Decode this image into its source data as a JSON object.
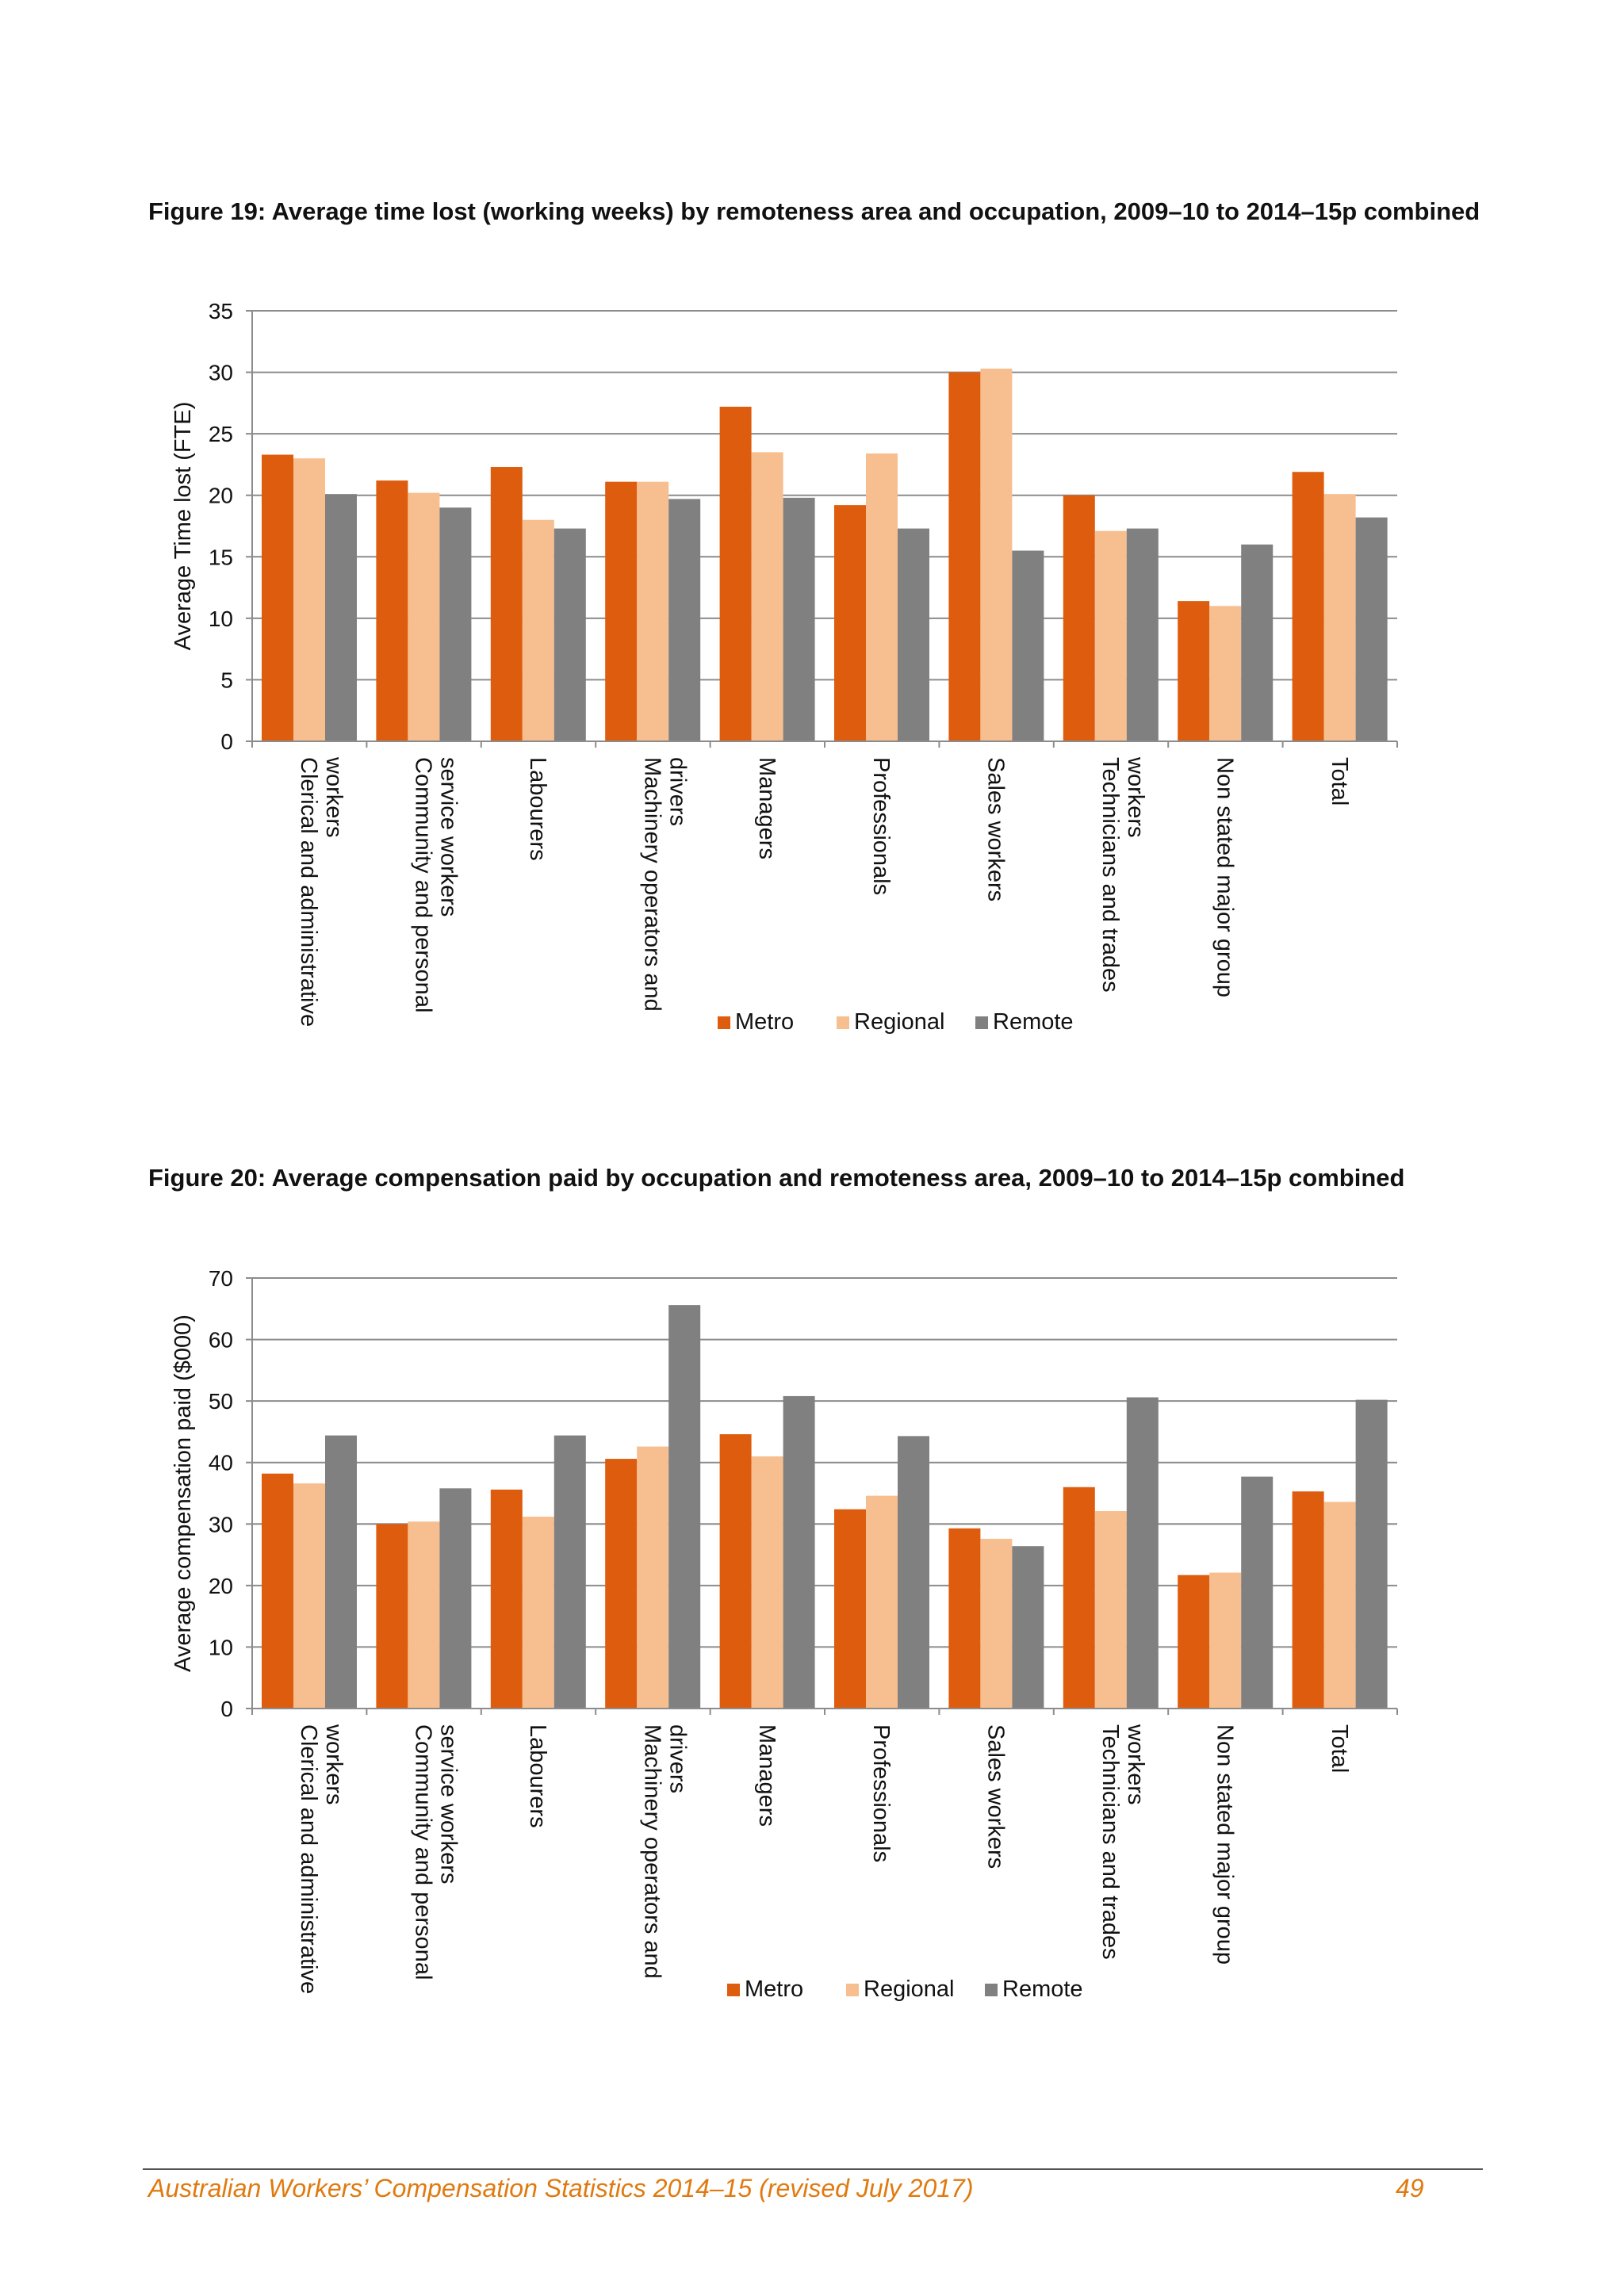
{
  "colors": {
    "Metro": "#de5c0d",
    "Regional": "#f7bf8f",
    "Remote": "#808080"
  },
  "footer": {
    "text": "Australian Workers’ Compensation Statistics 2014–15 (revised July 2017)",
    "page_number": "49"
  },
  "chart_data": [
    {
      "type": "bar",
      "title": "Figure 19: Average time lost (working weeks) by remoteness area and occupation, 2009–10 to 2014–15p combined",
      "ylabel": "Average Time lost (FTE)",
      "xlabel": "",
      "ylim": [
        0,
        35
      ],
      "yticks": [
        0,
        5,
        10,
        15,
        20,
        25,
        30,
        35
      ],
      "grid": true,
      "legend_position": "bottom",
      "categories": [
        "Clerical and administrative workers",
        "Community and personal service workers",
        "Labourers",
        "Machinery operators and drivers",
        "Managers",
        "Professionals",
        "Sales workers",
        "Technicians and trades workers",
        "Non stated major group",
        "Total"
      ],
      "series": [
        {
          "name": "Metro",
          "values": [
            23.3,
            21.2,
            22.3,
            21.1,
            27.2,
            19.2,
            30.0,
            20.0,
            11.4,
            21.9
          ]
        },
        {
          "name": "Regional",
          "values": [
            23.0,
            20.2,
            18.0,
            21.1,
            23.5,
            23.4,
            30.3,
            17.1,
            11.0,
            20.1
          ]
        },
        {
          "name": "Remote",
          "values": [
            20.1,
            19.0,
            17.3,
            19.7,
            19.8,
            17.3,
            15.5,
            17.3,
            16.0,
            18.2
          ]
        }
      ]
    },
    {
      "type": "bar",
      "title": "Figure 20: Average compensation paid by occupation and remoteness area, 2009–10 to 2014–15p combined",
      "ylabel": "Average compensation paid ($000)",
      "xlabel": "",
      "ylim": [
        0,
        70
      ],
      "yticks": [
        0,
        10,
        20,
        30,
        40,
        50,
        60,
        70
      ],
      "grid": true,
      "legend_position": "bottom",
      "categories": [
        "Clerical and administrative workers",
        "Community and personal service workers",
        "Labourers",
        "Machinery operators and drivers",
        "Managers",
        "Professionals",
        "Sales workers",
        "Technicians and trades workers",
        "Non stated major group",
        "Total"
      ],
      "series": [
        {
          "name": "Metro",
          "values": [
            38.2,
            30.0,
            35.6,
            40.6,
            44.6,
            32.4,
            29.3,
            36.0,
            21.7,
            35.3
          ]
        },
        {
          "name": "Regional",
          "values": [
            36.6,
            30.4,
            31.2,
            42.6,
            41.0,
            34.6,
            27.6,
            32.1,
            22.1,
            33.6
          ]
        },
        {
          "name": "Remote",
          "values": [
            44.4,
            35.8,
            44.4,
            65.6,
            50.8,
            44.3,
            26.4,
            50.6,
            37.7,
            50.2
          ]
        }
      ]
    }
  ]
}
